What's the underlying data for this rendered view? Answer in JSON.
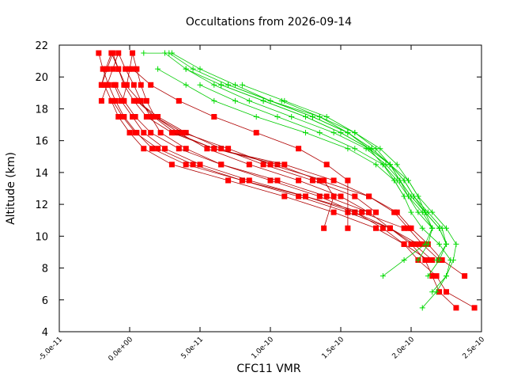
{
  "chart_data": {
    "type": "line",
    "title": "Occultations from 2026-09-14",
    "xlabel": "CFC11 VMR",
    "ylabel": "Altitude (km)",
    "xlim": [
      -5e-11,
      2.5e-10
    ],
    "ylim": [
      4,
      22
    ],
    "xticks": [
      -5e-11,
      0,
      5e-11,
      1e-10,
      1.5e-10,
      2e-10,
      2.5e-10
    ],
    "xtick_labels": [
      "-5.0e-11",
      "0.0e+00",
      "5.0e-11",
      "1.0e-10",
      "1.5e-10",
      "2.0e-10",
      "2.5e-10"
    ],
    "yticks": [
      4,
      6,
      8,
      10,
      12,
      14,
      16,
      18,
      20,
      22
    ],
    "ytick_labels": [
      "4",
      "6",
      "8",
      "10",
      "12",
      "14",
      "16",
      "18",
      "20",
      "22"
    ],
    "grid": false,
    "legend": "none",
    "series_style": {
      "red": {
        "color": "#ff0000",
        "line_color": "#b00000",
        "marker": "square"
      },
      "green": {
        "color": "#00dd00",
        "line_color": "#00cc00",
        "marker": "plus"
      }
    },
    "red_series": [
      {
        "x": [
          2.32e-10,
          2.2e-10,
          2.15e-10,
          2.1e-10,
          2e-10,
          1.85e-10,
          1.7e-10,
          1.5e-10,
          1.2e-10,
          8.5e-11,
          5.5e-11,
          3.5e-11,
          1.8e-11,
          1.2e-11,
          8e-12,
          5e-12,
          2e-12,
          0.0,
          -2e-12,
          -5e-12
        ],
        "y": [
          5.5,
          6.5,
          7.5,
          8.5,
          9.5,
          10.5,
          11.5,
          12.5,
          13.5,
          14.5,
          15.5,
          16.5,
          17.5,
          18.5,
          19.5,
          20.5,
          21.5,
          20.5,
          19.5,
          18.5
        ]
      },
      {
        "x": [
          2.45e-10,
          2.25e-10,
          2.18e-10,
          2.05e-10,
          1.95e-10,
          1.8e-10,
          1.6e-10,
          1.35e-10,
          1e-10,
          6.5e-11,
          4e-11,
          2.2e-11,
          1.5e-11,
          8e-12,
          3e-12,
          -3e-12,
          -8e-12,
          -1.2e-11,
          -1.6e-11,
          -2e-11
        ],
        "y": [
          5.5,
          6.5,
          7.5,
          8.5,
          9.5,
          10.5,
          11.5,
          12.5,
          13.5,
          14.5,
          15.5,
          16.5,
          17.5,
          18.5,
          19.5,
          20.5,
          21.5,
          20.5,
          19.5,
          18.5
        ]
      },
      {
        "x": [
          2.38e-10,
          2.22e-10,
          2.12e-10,
          2e-10,
          1.9e-10,
          1.7e-10,
          1.35e-10,
          1.05e-10,
          6e-11,
          3.2e-11,
          1.7e-11,
          7e-12,
          -3e-12,
          -8e-12,
          -1.3e-11,
          -1.7e-11,
          -2e-11
        ],
        "y": [
          7.5,
          8.5,
          9.5,
          10.5,
          11.5,
          12.5,
          13.5,
          14.5,
          15.5,
          16.5,
          17.5,
          18.5,
          19.5,
          20.5,
          21.5,
          20.5,
          19.5
        ]
      },
      {
        "x": [
          2.2e-10,
          2.08e-10,
          1.98e-10,
          1.88e-10,
          1.7e-10,
          1.45e-10,
          1.1e-10,
          6e-11,
          3e-11,
          1.2e-11,
          3e-12,
          -4e-12,
          -8e-12,
          -1.2e-11,
          -1.6e-11,
          -2e-11
        ],
        "y": [
          8.5,
          9.5,
          10.5,
          11.5,
          12.5,
          13.5,
          14.5,
          15.5,
          16.5,
          17.5,
          18.5,
          19.5,
          20.5,
          21.5,
          20.5,
          19.5
        ]
      },
      {
        "x": [
          2.15e-10,
          2.02e-10,
          1.85e-10,
          1.6e-10,
          1.25e-10,
          8e-11,
          4e-11,
          1.6e-11,
          5e-12,
          -4e-12,
          -1e-11,
          -1.5e-11,
          -1.9e-11,
          -2.2e-11
        ],
        "y": [
          8.5,
          9.5,
          10.5,
          11.5,
          12.5,
          13.5,
          14.5,
          15.5,
          16.5,
          17.5,
          18.5,
          19.5,
          20.5,
          21.5
        ]
      },
      {
        "x": [
          2.12e-10,
          1.95e-10,
          1.75e-10,
          1.45e-10,
          1.1e-10,
          7e-11,
          3e-11,
          1e-11,
          0.0,
          -8e-12,
          -1.3e-11,
          -1.8e-11
        ],
        "y": [
          8.5,
          9.5,
          10.5,
          11.5,
          12.5,
          13.5,
          14.5,
          15.5,
          16.5,
          17.5,
          18.5,
          19.5
        ]
      },
      {
        "x": [
          2.05e-10,
          1.85e-10,
          1.55e-10,
          1.2e-10,
          8e-11,
          4.5e-11,
          2e-11,
          4e-12,
          -5e-12,
          -1.2e-11
        ],
        "y": [
          9.5,
          10.5,
          11.5,
          12.5,
          13.5,
          14.5,
          15.5,
          16.5,
          17.5,
          18.5
        ]
      },
      {
        "x": [
          1.95e-10,
          1.65e-10,
          1.25e-10,
          8.5e-11,
          5e-11,
          2.5e-11,
          1e-11,
          2e-12,
          -6e-12,
          -1.1e-11
        ],
        "y": [
          10.5,
          11.5,
          12.5,
          13.5,
          14.5,
          15.5,
          16.5,
          17.5,
          18.5,
          19.5
        ]
      },
      {
        "x": [
          1.7e-10,
          1.4e-10,
          1.05e-10,
          6.5e-11,
          3.5e-11,
          1.5e-11,
          4e-12,
          -4e-12,
          -1e-11
        ],
        "y": [
          11.5,
          12.5,
          13.5,
          14.5,
          15.5,
          16.5,
          17.5,
          18.5,
          19.5
        ]
      },
      {
        "x": [
          1.55e-10,
          1.55e-10,
          1.4e-10,
          1.2e-10,
          9e-11,
          6e-11,
          3.5e-11,
          1.5e-11,
          2e-12
        ],
        "y": [
          10.5,
          13.5,
          14.5,
          15.5,
          16.5,
          17.5,
          18.5,
          19.5,
          20.5
        ]
      },
      {
        "x": [
          1.75e-10,
          1.6e-10,
          1.3e-10,
          9.5e-11,
          6.5e-11,
          4e-11,
          2e-11,
          5e-12
        ],
        "y": [
          11.5,
          12.5,
          13.5,
          14.5,
          15.5,
          16.5,
          17.5,
          18.5
        ]
      },
      {
        "x": [
          1.38e-10,
          1.45e-10,
          1.38e-10,
          1e-10,
          7e-11,
          3.8e-11,
          1.8e-11,
          5e-12
        ],
        "y": [
          10.5,
          12.5,
          13.5,
          14.5,
          15.5,
          16.5,
          17.5,
          18.5
        ]
      }
    ],
    "green_series": [
      {
        "x": [
          1.8e-10,
          1.95e-10,
          2.1e-10,
          2.15e-10,
          2.1e-10,
          2.05e-10,
          1.98e-10,
          1.85e-10,
          1.7e-10,
          1.5e-10,
          1.25e-10,
          9.5e-11,
          6.5e-11,
          4e-11,
          2.5e-11,
          1e-11
        ],
        "y": [
          7.5,
          8.5,
          9.5,
          10.5,
          11.5,
          12.5,
          13.5,
          14.5,
          15.5,
          16.5,
          17.5,
          18.5,
          19.5,
          20.5,
          21.5,
          21.5
        ]
      },
      {
        "x": [
          2.08e-10,
          2.18e-10,
          2.25e-10,
          2.28e-10,
          2.2e-10,
          2.08e-10,
          2e-10,
          1.95e-10,
          1.88e-10,
          1.75e-10,
          1.55e-10,
          1.25e-10,
          9e-11,
          6e-11,
          4e-11,
          2e-11
        ],
        "y": [
          5.5,
          6.5,
          7.5,
          8.5,
          9.5,
          10.5,
          11.5,
          12.5,
          13.5,
          14.5,
          15.5,
          16.5,
          17.5,
          18.5,
          19.5,
          20.5
        ]
      },
      {
        "x": [
          2.15e-10,
          2.25e-10,
          2.3e-10,
          2.32e-10,
          2.25e-10,
          2.15e-10,
          2.05e-10,
          1.98e-10,
          1.9e-10,
          1.78e-10,
          1.6e-10,
          1.35e-10,
          1e-10,
          7e-11,
          4.5e-11,
          2.8e-11
        ],
        "y": [
          6.5,
          7.5,
          8.5,
          9.5,
          10.5,
          11.5,
          12.5,
          13.5,
          14.5,
          15.5,
          16.5,
          17.5,
          18.5,
          19.5,
          20.5,
          21.5
        ]
      },
      {
        "x": [
          2.12e-10,
          2.2e-10,
          2.25e-10,
          2.22e-10,
          2.12e-10,
          2.02e-10,
          1.95e-10,
          1.85e-10,
          1.72e-10,
          1.55e-10,
          1.3e-10,
          1e-10,
          7.5e-11,
          5e-11,
          3e-11
        ],
        "y": [
          7.5,
          8.5,
          9.5,
          10.5,
          11.5,
          12.5,
          13.5,
          14.5,
          15.5,
          16.5,
          17.5,
          18.5,
          19.5,
          20.5,
          21.5
        ]
      },
      {
        "x": [
          2.18e-10,
          2.25e-10,
          2.2e-10,
          2.1e-10,
          2e-10,
          1.92e-10,
          1.82e-10,
          1.68e-10,
          1.45e-10,
          1.15e-10,
          8.5e-11,
          6e-11,
          4e-11
        ],
        "y": [
          8.5,
          9.5,
          10.5,
          11.5,
          12.5,
          13.5,
          14.5,
          15.5,
          16.5,
          17.5,
          18.5,
          19.5,
          20.5
        ]
      },
      {
        "x": [
          2.05e-10,
          2.12e-10,
          2.15e-10,
          2.08e-10,
          1.98e-10,
          1.9e-10,
          1.8e-10,
          1.6e-10,
          1.35e-10,
          1.05e-10,
          7.5e-11,
          5e-11
        ],
        "y": [
          8.5,
          9.5,
          10.5,
          11.5,
          12.5,
          13.5,
          14.5,
          15.5,
          16.5,
          17.5,
          18.5,
          19.5
        ]
      },
      {
        "x": [
          2.25e-10,
          2.2e-10,
          2.1e-10,
          2.02e-10,
          1.95e-10,
          1.85e-10,
          1.7e-10,
          1.5e-10,
          1.25e-10,
          9.5e-11,
          6.5e-11
        ],
        "y": [
          9.5,
          10.5,
          11.5,
          12.5,
          13.5,
          14.5,
          15.5,
          16.5,
          17.5,
          18.5,
          19.5
        ]
      },
      {
        "x": [
          2.15e-10,
          2.05e-10,
          1.98e-10,
          1.92e-10,
          1.85e-10,
          1.72e-10,
          1.55e-10,
          1.3e-10,
          1e-10,
          7e-11
        ],
        "y": [
          10.5,
          11.5,
          12.5,
          13.5,
          14.5,
          15.5,
          16.5,
          17.5,
          18.5,
          19.5
        ]
      },
      {
        "x": [
          2.1e-10,
          2e-10,
          1.92e-10,
          1.85e-10,
          1.75e-10,
          1.6e-10,
          1.4e-10,
          1.1e-10,
          8e-11
        ],
        "y": [
          11.5,
          12.5,
          13.5,
          14.5,
          15.5,
          16.5,
          17.5,
          18.5,
          19.5
        ]
      },
      {
        "x": [
          1.95e-10,
          1.88e-10,
          1.8e-10,
          1.7e-10,
          1.55e-10,
          1.35e-10,
          1.08e-10
        ],
        "y": [
          12.5,
          13.5,
          14.5,
          15.5,
          16.5,
          17.5,
          18.5
        ]
      }
    ]
  }
}
